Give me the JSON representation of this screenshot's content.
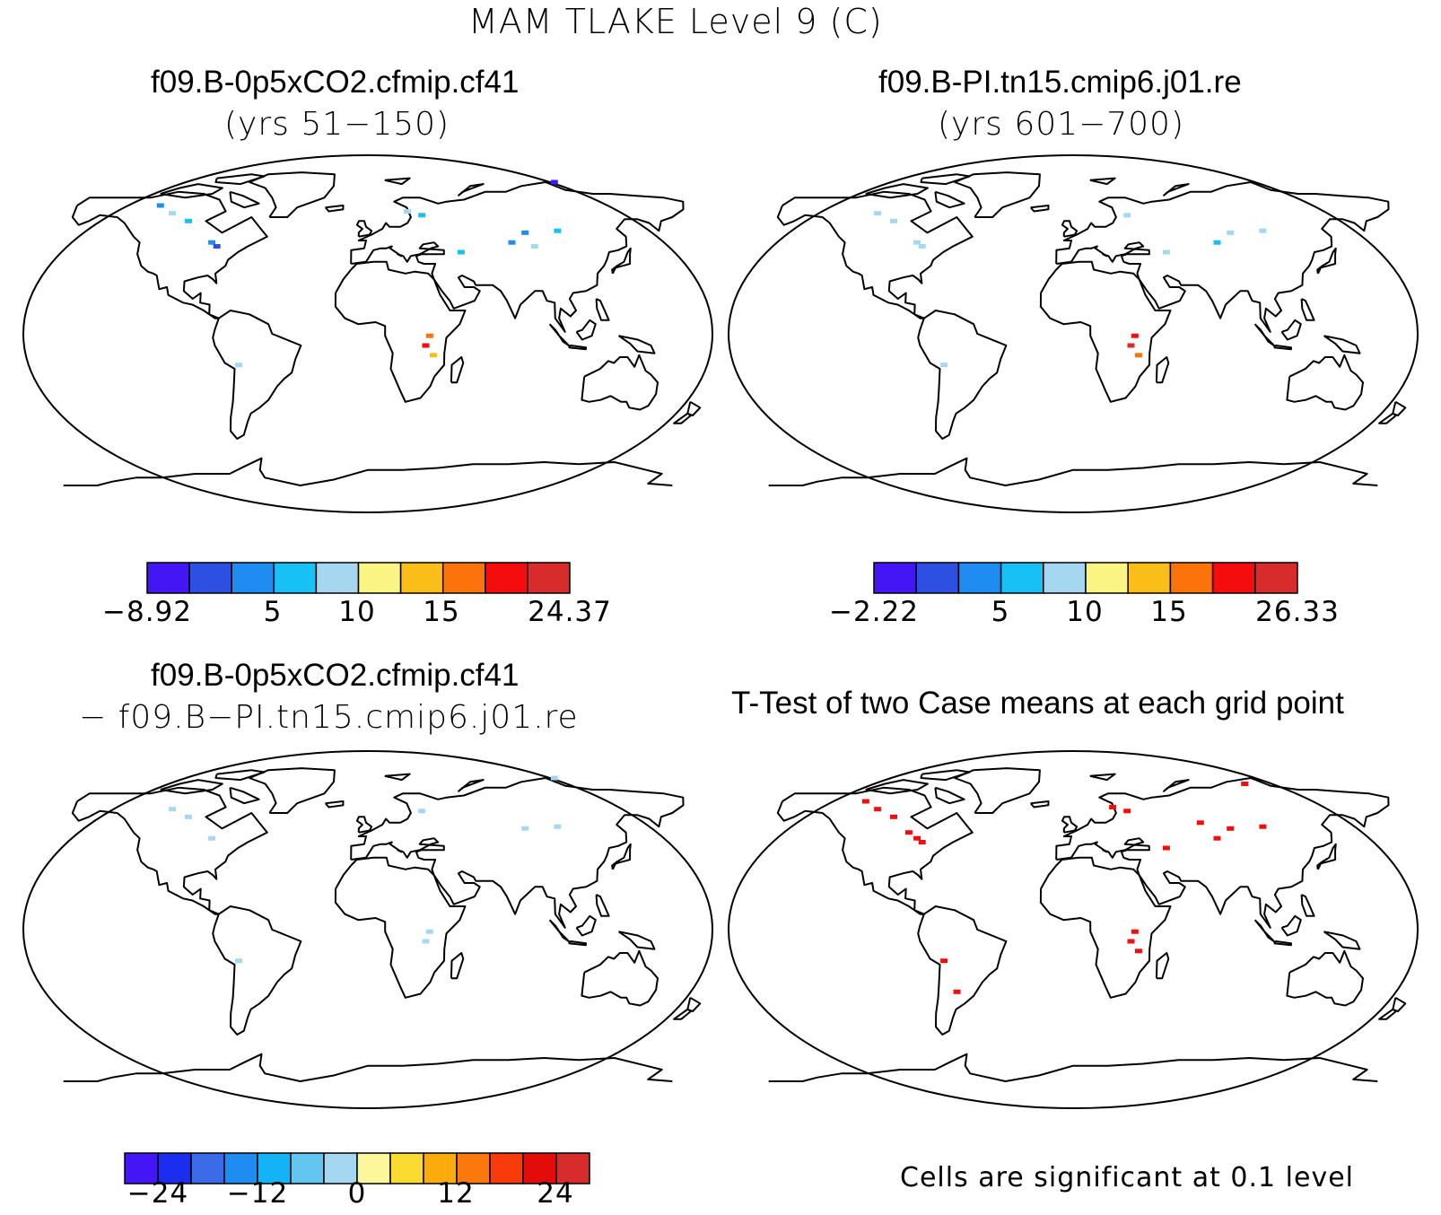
{
  "title": "MAM TLAKE Level 9 (C)",
  "panels": {
    "top_left": {
      "title": "f09.B-0p5xCO2.cfmip.cf41",
      "subtitle": "(yrs 51−150)"
    },
    "top_right": {
      "title": "f09.B-PI.tn15.cmip6.j01.re",
      "subtitle": "(yrs 601−700)"
    },
    "bottom_left": {
      "title": "f09.B-0p5xCO2.cfmip.cf41",
      "subtitle": "− f09.B−PI.tn15.cmip6.j01.re"
    },
    "bottom_right": {
      "title": "T-Test of two Case means at each grid point",
      "note": "Cells are significant at 0.1 level"
    }
  },
  "colorbars": {
    "top_left": {
      "colors": [
        "#4316f5",
        "#2d50e3",
        "#1e8cf0",
        "#17c0f5",
        "#a5d8f0",
        "#faf582",
        "#fbbe19",
        "#fb730b",
        "#f50c0c",
        "#d82c2c"
      ],
      "labels": [
        "−8.92",
        "5",
        "10",
        "15",
        "24.37"
      ]
    },
    "top_right": {
      "colors": [
        "#4316f5",
        "#2d50e3",
        "#1e8cf0",
        "#17c0f5",
        "#a5d8f0",
        "#faf582",
        "#fbbe19",
        "#fb730b",
        "#f50c0c",
        "#d82c2c"
      ],
      "labels": [
        "−2.22",
        "5",
        "10",
        "15",
        "26.33"
      ]
    },
    "bottom_left": {
      "colors": [
        "#4316f5",
        "#1b2ef0",
        "#3b6be6",
        "#1e8cf0",
        "#12b4f5",
        "#62c6f0",
        "#a5d8f0",
        "#fbf79a",
        "#fadb32",
        "#fbab0c",
        "#fb780c",
        "#f93b0b",
        "#e40b0b",
        "#d82c2c"
      ],
      "labels": [
        "−24",
        "−12",
        "0",
        "12",
        "24"
      ]
    }
  }
}
